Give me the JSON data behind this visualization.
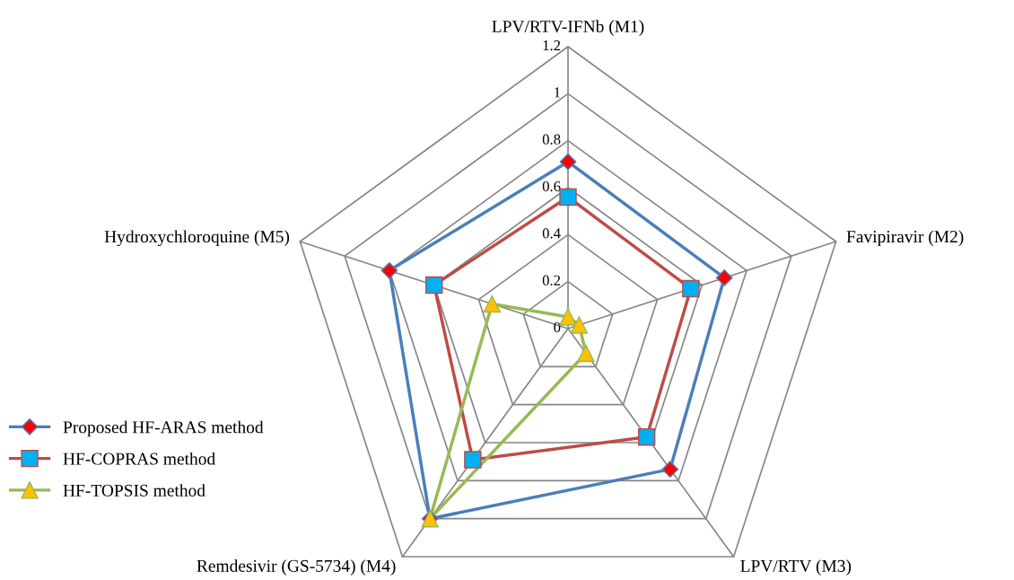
{
  "chart_data": {
    "type": "radar",
    "categories": [
      "LPV/RTV-IFNb (M1)",
      "Favipiravir (M2)",
      "LPV/RTV (M3)",
      "Remdesivir (GS-5734) (M4)",
      "Hydroxychloroquine (M5)"
    ],
    "series": [
      {
        "name": "Proposed HF-ARAS method",
        "color": "#4a7ebb",
        "marker": "diamond",
        "colors": [
          "#ff0000",
          "#ff0000",
          "#ff0000",
          "#ff0000",
          "#ff0000"
        ],
        "values": [
          0.71,
          0.7,
          0.74,
          1.0,
          0.8
        ]
      },
      {
        "name": "HF-COPRAS method",
        "color": "#be4b48",
        "marker": "square",
        "colors": [
          "#00b0f0",
          "#00b0f0",
          "#00b0f0",
          "#00b0f0",
          "#00b0f0"
        ],
        "values": [
          0.56,
          0.55,
          0.57,
          0.69,
          0.6
        ]
      },
      {
        "name": "HF-TOPSIS method",
        "color": "#98b954",
        "marker": "triangle",
        "colors": [
          "#ffc000",
          "#ffc000",
          "#ffc000",
          "#ffc000",
          "#ffc000"
        ],
        "values": [
          0.05,
          0.05,
          0.13,
          1.0,
          0.34
        ]
      }
    ],
    "ylim": [
      0,
      1.2
    ],
    "yticks": [
      0,
      0.2,
      0.4,
      0.6,
      0.8,
      1,
      1.2
    ],
    "grid": true,
    "legend": "bottom left",
    "line_style": "solid"
  }
}
